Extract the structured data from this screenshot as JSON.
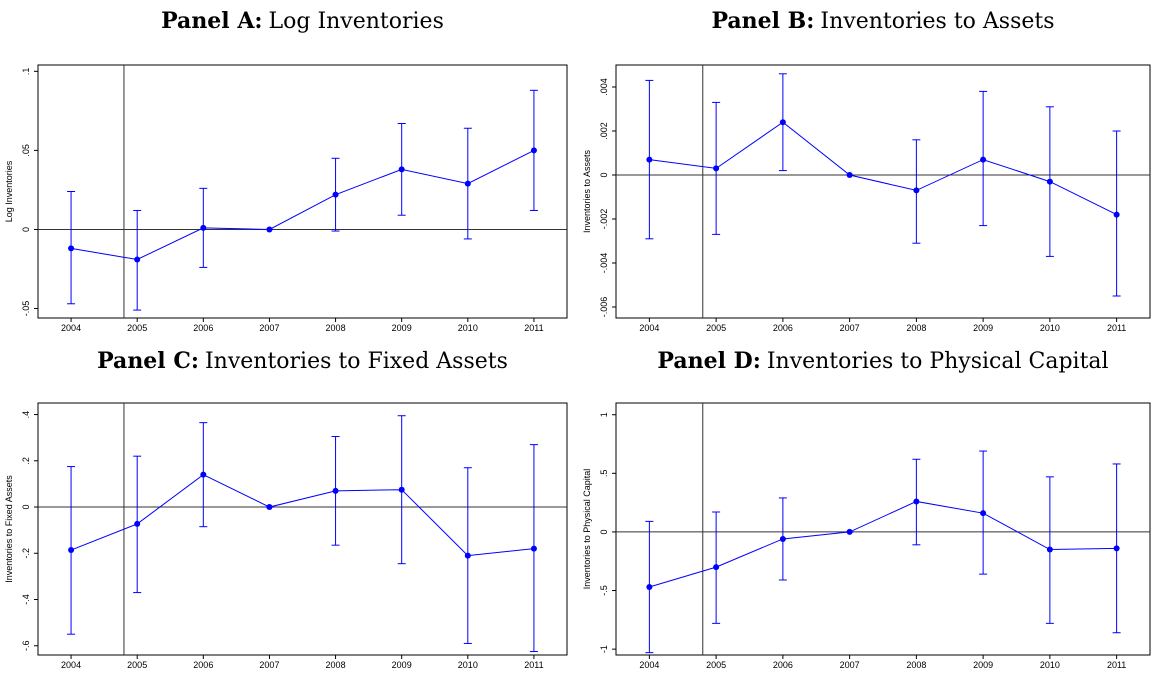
{
  "chart_data": [
    {
      "type": "line",
      "panel": "Panel A:",
      "title": "Log Inventories",
      "ylabel": "Log Inventories",
      "x": [
        2004,
        2005,
        2006,
        2007,
        2008,
        2009,
        2010,
        2011
      ],
      "xlim": [
        2003.5,
        2011.5
      ],
      "xticks": [
        2004,
        2005,
        2006,
        2007,
        2008,
        2009,
        2010,
        2011
      ],
      "ylim": [
        -0.056,
        0.104
      ],
      "yticks": [
        {
          "value": -0.05,
          "label": "-.05"
        },
        0,
        {
          "value": 0.05,
          "label": ".05"
        },
        {
          "value": 0.1,
          "label": ".1"
        }
      ],
      "xline": 2004.8,
      "yline": 0,
      "color": "#0000ff",
      "values": [
        -0.012,
        -0.019,
        0.001,
        0,
        0.022,
        0.038,
        0.029,
        0.05
      ],
      "ci_low": [
        -0.047,
        -0.051,
        -0.024,
        0,
        -0.001,
        0.009,
        -0.006,
        0.012
      ],
      "ci_high": [
        0.024,
        0.012,
        0.026,
        0,
        0.045,
        0.067,
        0.064,
        0.088
      ]
    },
    {
      "type": "line",
      "panel": "Panel B:",
      "title": "Inventories to Assets",
      "ylabel": "Inventories to Assets",
      "x": [
        2004,
        2005,
        2006,
        2007,
        2008,
        2009,
        2010,
        2011
      ],
      "xlim": [
        2003.5,
        2011.5
      ],
      "xticks": [
        2004,
        2005,
        2006,
        2007,
        2008,
        2009,
        2010,
        2011
      ],
      "ylim": [
        -0.0065,
        0.005
      ],
      "yticks": [
        {
          "value": -0.006,
          "label": "-.006"
        },
        {
          "value": -0.004,
          "label": "-.004"
        },
        {
          "value": -0.002,
          "label": "-.002"
        },
        0,
        {
          "value": 0.002,
          "label": ".002"
        },
        {
          "value": 0.004,
          "label": ".004"
        }
      ],
      "xline": 2004.8,
      "yline": 0,
      "color": "#0000ff",
      "values": [
        0.0007,
        0.0003,
        0.0024,
        0,
        -0.0007,
        0.0007,
        -0.0003,
        -0.0018
      ],
      "ci_low": [
        -0.0029,
        -0.0027,
        0.0002,
        0,
        -0.0031,
        -0.0023,
        -0.0037,
        -0.0055
      ],
      "ci_high": [
        0.0043,
        0.0033,
        0.0046,
        0,
        0.0016,
        0.0038,
        0.0031,
        0.002
      ]
    },
    {
      "type": "line",
      "panel": "Panel C:",
      "title": "Inventories to Fixed Assets",
      "ylabel": "Inventories to Fixed Assets",
      "x": [
        2004,
        2005,
        2006,
        2007,
        2008,
        2009,
        2010,
        2011
      ],
      "xlim": [
        2003.5,
        2011.5
      ],
      "xticks": [
        2004,
        2005,
        2006,
        2007,
        2008,
        2009,
        2010,
        2011
      ],
      "ylim": [
        -0.64,
        0.45
      ],
      "yticks": [
        {
          "value": -0.6,
          "label": "-.6"
        },
        {
          "value": -0.4,
          "label": "-.4"
        },
        {
          "value": -0.2,
          "label": "-.2"
        },
        0,
        {
          "value": 0.2,
          "label": ".2"
        },
        {
          "value": 0.4,
          "label": ".4"
        }
      ],
      "xline": 2004.8,
      "yline": 0,
      "color": "#0000ff",
      "values": [
        -0.186,
        -0.073,
        0.14,
        0,
        0.07,
        0.075,
        -0.21,
        -0.18
      ],
      "ci_low": [
        -0.55,
        -0.37,
        -0.085,
        0,
        -0.165,
        -0.245,
        -0.59,
        -0.625
      ],
      "ci_high": [
        0.175,
        0.22,
        0.365,
        0,
        0.305,
        0.395,
        0.17,
        0.27
      ]
    },
    {
      "type": "line",
      "panel": "Panel D:",
      "title": "Inventories to Physical Capital",
      "ylabel": "Inventories to Physical Capital",
      "x": [
        2004,
        2005,
        2006,
        2007,
        2008,
        2009,
        2010,
        2011
      ],
      "xlim": [
        2003.5,
        2011.5
      ],
      "xticks": [
        2004,
        2005,
        2006,
        2007,
        2008,
        2009,
        2010,
        2011
      ],
      "ylim": [
        -1.05,
        1.1
      ],
      "yticks": [
        {
          "value": -1,
          "label": "-1"
        },
        {
          "value": -0.5,
          "label": "-.5"
        },
        0,
        {
          "value": 0.5,
          "label": ".5"
        },
        1
      ],
      "xline": 2004.8,
      "yline": 0,
      "color": "#0000ff",
      "values": [
        -0.47,
        -0.3,
        -0.06,
        0,
        0.26,
        0.16,
        -0.15,
        -0.14
      ],
      "ci_low": [
        -1.03,
        -0.78,
        -0.41,
        0,
        -0.11,
        -0.36,
        -0.78,
        -0.86
      ],
      "ci_high": [
        0.09,
        0.17,
        0.29,
        0,
        0.62,
        0.69,
        0.47,
        0.58
      ]
    }
  ]
}
